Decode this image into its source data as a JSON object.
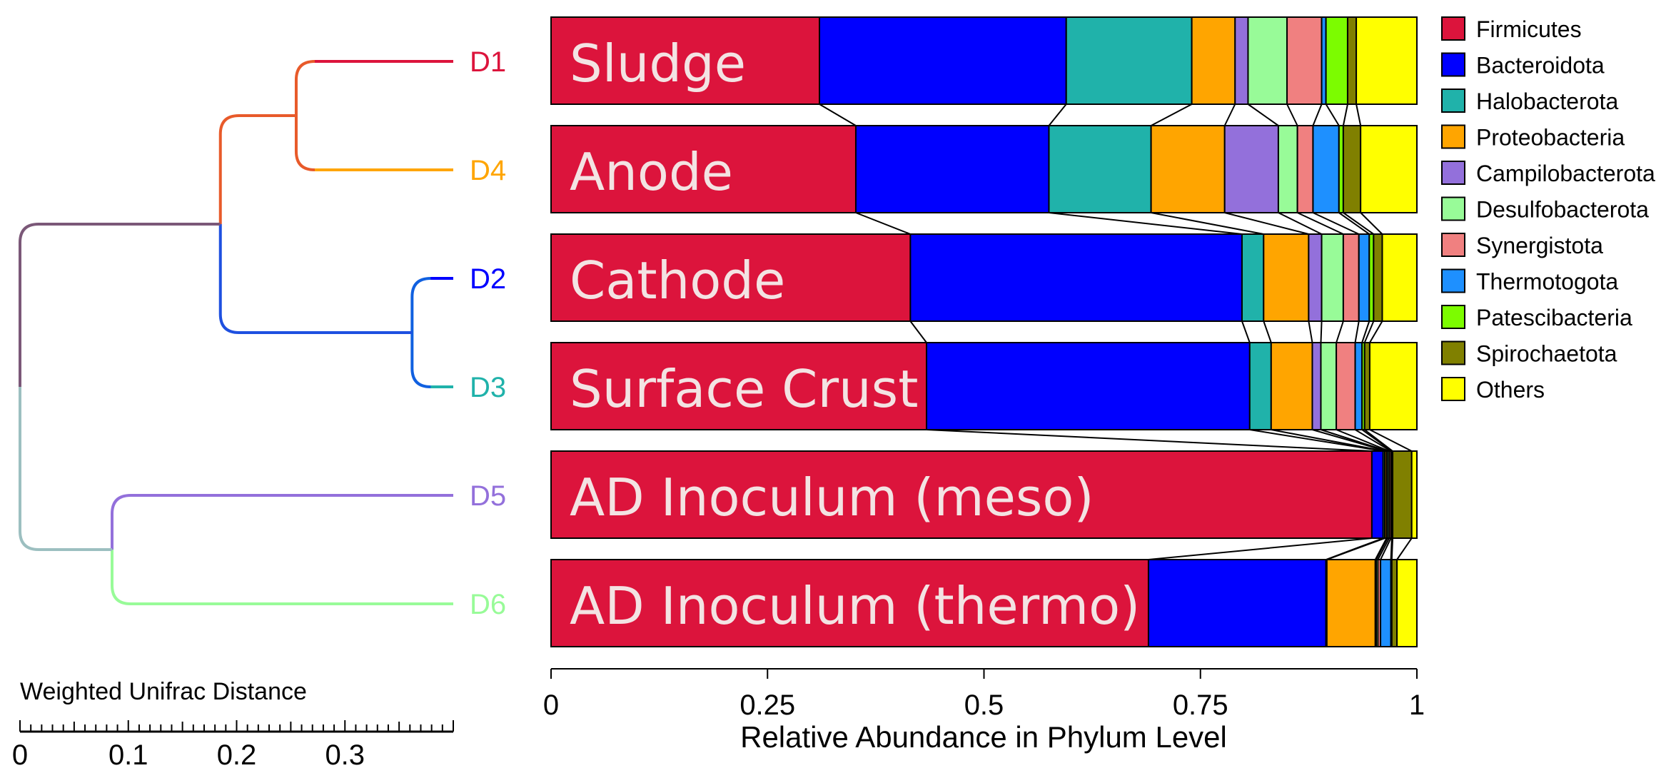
{
  "chart_data": {
    "type": "bar",
    "orientation": "horizontal-stacked",
    "xlabel": "Relative Abundance in Phylum Level",
    "xlim": [
      0,
      1
    ],
    "xticks": [
      "0",
      "0.25",
      "0.5",
      "0.75",
      "1"
    ],
    "tick_values": [
      0,
      0.25,
      0.5,
      0.75,
      1
    ],
    "legend": {
      "placement": "right",
      "entries": [
        {
          "name": "Firmicutes",
          "color": "#DC143C"
        },
        {
          "name": "Bacteroidota",
          "color": "#0000FF"
        },
        {
          "name": "Halobacterota",
          "color": "#20B2AA"
        },
        {
          "name": "Proteobacteria",
          "color": "#FFA500"
        },
        {
          "name": "Campilobacterota",
          "color": "#9370DB"
        },
        {
          "name": "Desulfobacterota",
          "color": "#98FB98"
        },
        {
          "name": "Synergistota",
          "color": "#F08080"
        },
        {
          "name": "Thermotogota",
          "color": "#1E90FF"
        },
        {
          "name": "Patescibacteria",
          "color": "#7CFC00"
        },
        {
          "name": "Spirochaetota",
          "color": "#808000"
        },
        {
          "name": "Others",
          "color": "#FFFF00"
        }
      ]
    },
    "samples": [
      {
        "label": "Sludge",
        "values": [
          0.31,
          0.285,
          0.145,
          0.05,
          0.015,
          0.045,
          0.04,
          0.005,
          0.025,
          0.01,
          0.07
        ]
      },
      {
        "label": "Anode",
        "values": [
          0.352,
          0.223,
          0.118,
          0.085,
          0.062,
          0.022,
          0.018,
          0.03,
          0.005,
          0.02,
          0.065
        ]
      },
      {
        "label": "Cathode",
        "values": [
          0.415,
          0.383,
          0.025,
          0.052,
          0.015,
          0.025,
          0.018,
          0.012,
          0.005,
          0.01,
          0.04
        ]
      },
      {
        "label": "Surface Crust",
        "values": [
          0.438,
          0.377,
          0.025,
          0.048,
          0.01,
          0.018,
          0.022,
          0.008,
          0.003,
          0.006,
          0.055
        ]
      },
      {
        "label": "AD Inoculum (meso)",
        "values": [
          0.948,
          0.013,
          0.002,
          0.002,
          0.001,
          0.002,
          0.002,
          0.001,
          0.001,
          0.022,
          0.006
        ]
      },
      {
        "label": "AD Inoculum (thermo)",
        "values": [
          0.69,
          0.205,
          0.001,
          0.056,
          0.001,
          0.002,
          0.003,
          0.012,
          0.001,
          0.006,
          0.023
        ]
      }
    ],
    "dendrogram": {
      "scale_label": "Weighted Unifrac Distance",
      "scale_ticks": [
        "0",
        "0.1",
        "0.2",
        "0.3"
      ],
      "scale_tick_values": [
        0,
        0.1,
        0.2,
        0.3
      ],
      "scale_max": 0.4,
      "leaves": [
        {
          "name": "D1",
          "color": "#DC143C"
        },
        {
          "name": "D4",
          "color": "#FFA500"
        },
        {
          "name": "D2",
          "color": "#0000FF"
        },
        {
          "name": "D3",
          "color": "#20B2AA"
        },
        {
          "name": "D5",
          "color": "#9370DB"
        },
        {
          "name": "D6",
          "color": "#98FB98"
        }
      ],
      "merges": [
        {
          "id": "n14",
          "children": [
            "D1",
            "D4"
          ],
          "height": 0.145,
          "color": "#E85A2A"
        },
        {
          "id": "n23",
          "children": [
            "D2",
            "D3"
          ],
          "height": 0.038,
          "color": "#1060E0"
        },
        {
          "id": "n1234",
          "children": [
            "n14",
            "n23"
          ],
          "height": 0.215,
          "color": "#E85A2A",
          "lower_color": "#1E50E0"
        },
        {
          "id": "n56",
          "children": [
            "D5",
            "D6"
          ],
          "height": 0.315,
          "color": "#9370DB",
          "lower_color": "#98FB98"
        },
        {
          "id": "root",
          "children": [
            "n1234",
            "n56"
          ],
          "height": 0.4,
          "color": "#7B5878",
          "lower_color": "#9CBFC0"
        }
      ]
    }
  }
}
